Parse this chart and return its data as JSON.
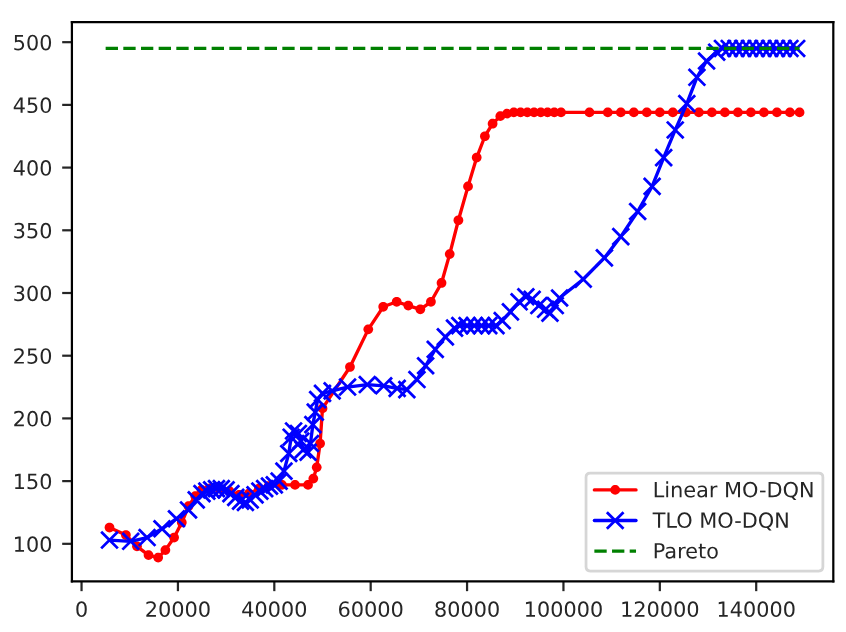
{
  "chart_data": {
    "type": "line",
    "xlim": [
      -2000,
      156000
    ],
    "ylim": [
      70,
      516
    ],
    "xticks": [
      0,
      20000,
      40000,
      60000,
      80000,
      100000,
      120000,
      140000
    ],
    "yticks": [
      100,
      150,
      200,
      250,
      300,
      350,
      400,
      450,
      500
    ],
    "grid": false,
    "legend": "bottom right",
    "series": [
      {
        "name": "Linear MO-DQN",
        "color": "#ff0000",
        "marker": "circle",
        "line_style": "solid",
        "x": [
          5800,
          9200,
          11500,
          13900,
          15900,
          17400,
          19200,
          20800,
          22200,
          23600,
          24900,
          26500,
          28600,
          30700,
          32700,
          34700,
          36800,
          38800,
          41600,
          44300,
          47000,
          48100,
          48800,
          49500,
          50000,
          55700,
          59500,
          62600,
          65400,
          67800,
          70300,
          72500,
          74700,
          76400,
          78200,
          80200,
          82000,
          83700,
          85300,
          86900,
          88300,
          89700,
          91100,
          92500,
          93900,
          95300,
          96700,
          98100,
          99500,
          105400,
          109200,
          111900,
          114600,
          117300,
          120000,
          122700,
          125400,
          128100,
          130800,
          133500,
          136200,
          138900,
          141600,
          144300,
          147000,
          149000
        ],
        "values": [
          113,
          107,
          98,
          91,
          89,
          95,
          105,
          117,
          130,
          138,
          143,
          144,
          144,
          142,
          139,
          140,
          144,
          146,
          147,
          147,
          147,
          152,
          161,
          180,
          208,
          241,
          271,
          289,
          293,
          290,
          287,
          293,
          308,
          331,
          358,
          385,
          408,
          425,
          435,
          441,
          443,
          444,
          444,
          444,
          444,
          444,
          444,
          444,
          444,
          444,
          444,
          444,
          444,
          444,
          444,
          444,
          444,
          444,
          444,
          444,
          444,
          444,
          444,
          444,
          444,
          444
        ]
      },
      {
        "name": "TLO MO-DQN",
        "color": "#0000ff",
        "marker": "cross",
        "line_style": "solid",
        "x": [
          5800,
          10200,
          13600,
          16700,
          19700,
          22200,
          23800,
          25000,
          26000,
          27000,
          28000,
          29000,
          30000,
          31000,
          32000,
          33000,
          34000,
          35000,
          36000,
          37000,
          38000,
          39000,
          40000,
          41000,
          42000,
          43000,
          43500,
          44000,
          45000,
          45500,
          46000,
          47000,
          47500,
          48000,
          48500,
          49000,
          50000,
          52000,
          55200,
          59300,
          62700,
          65500,
          67500,
          69600,
          71400,
          73400,
          75500,
          77400,
          78500,
          80000,
          81500,
          83000,
          84500,
          86000,
          87300,
          89000,
          90800,
          92200,
          93500,
          94900,
          96300,
          97200,
          98300,
          99200,
          104100,
          108500,
          111900,
          115400,
          118400,
          120800,
          123200,
          125600,
          127700,
          129700,
          131800,
          133000,
          134400,
          135800,
          137200,
          138600,
          140000,
          141400,
          142800,
          144200,
          145600,
          147000,
          148400
        ],
        "values": [
          103,
          102,
          105,
          112,
          120,
          127,
          135,
          140,
          142,
          143,
          144,
          144,
          143,
          140,
          137,
          134,
          133,
          135,
          139,
          142,
          144,
          146,
          147,
          150,
          158,
          172,
          185,
          190,
          188,
          182,
          175,
          173,
          180,
          195,
          205,
          215,
          220,
          222,
          225,
          227,
          226,
          224,
          223,
          231,
          242,
          255,
          265,
          272,
          274,
          274,
          274,
          274,
          274,
          274,
          278,
          285,
          293,
          297,
          295,
          290,
          287,
          284,
          290,
          296,
          311,
          328,
          345,
          365,
          385,
          408,
          430,
          451,
          472,
          485,
          492,
          495,
          495,
          495,
          495,
          495,
          495,
          495,
          495,
          495,
          495,
          495,
          495
        ]
      },
      {
        "name": "Pareto",
        "color": "#008000",
        "marker": "none",
        "line_style": "dashed",
        "x": [
          5000,
          149000
        ],
        "values": [
          495,
          495
        ]
      }
    ]
  }
}
